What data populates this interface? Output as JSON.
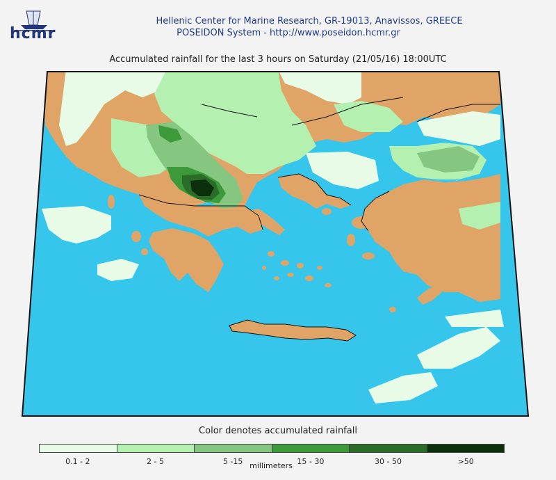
{
  "header": {
    "logo_text": "hcmr",
    "org_name": "Hellenic Center for Marine Research, GR-19013, Anavissos, GREECE",
    "system_line": "POSEIDON System - http://www.poseidon.hcmr.gr"
  },
  "map": {
    "title": "Accumulated rainfall for the last 3 hours on Saturday (21/05/16) 18:00UTC",
    "colors": {
      "sea": "#36c6ec",
      "land_dry": "#e0a566",
      "frame": "#111111"
    }
  },
  "legend": {
    "title": "Color denotes accumulated rainfall",
    "unit": "millimeters",
    "classes": [
      {
        "label": "0.1 - 2",
        "color": "#e7fbe7"
      },
      {
        "label": "2 - 5",
        "color": "#b4f0b0"
      },
      {
        "label": "5 -15",
        "color": "#85c680"
      },
      {
        "label": "15 - 30",
        "color": "#3d9a3a"
      },
      {
        "label": "30 - 50",
        "color": "#2a6d28"
      },
      {
        "label": ">50",
        "color": "#0b300b"
      }
    ]
  }
}
